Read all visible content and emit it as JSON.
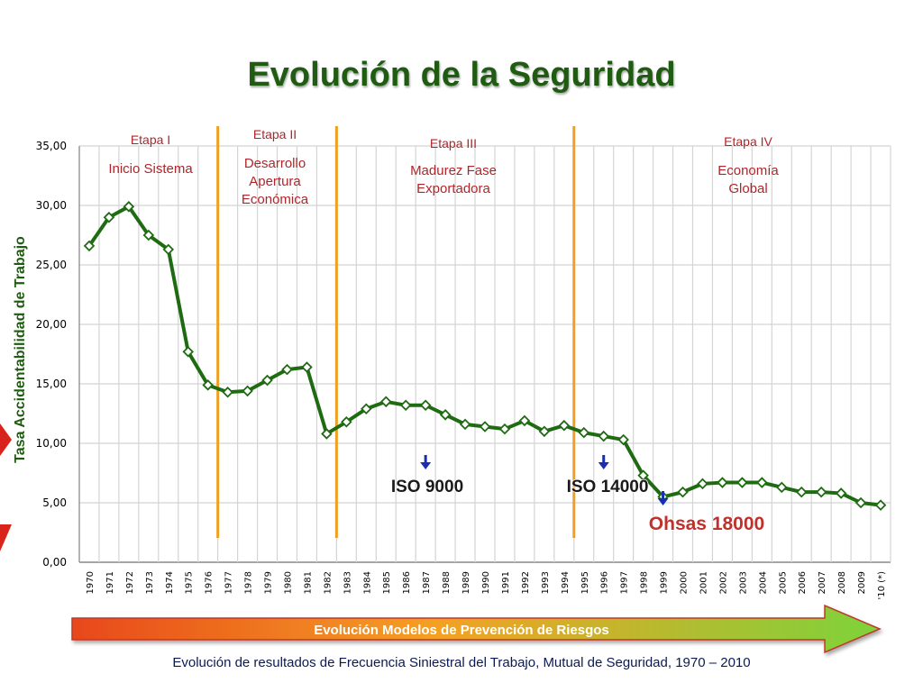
{
  "title": "Evolución de la Seguridad",
  "caption": "Evolución de resultados de Frecuencia Siniestral del Trabajo, Mutual de Seguridad, 1970 – 2010",
  "arrow_label": "Evolución Modelos de Prevención de Riesgos",
  "chart_data": {
    "type": "line",
    "ylabel": "Tasa Accidentabilidad de Trabajo",
    "ylim": [
      0,
      35
    ],
    "yticks": [
      "0,00",
      "5,00",
      "10,00",
      "15,00",
      "20,00",
      "25,00",
      "30,00",
      "35,00"
    ],
    "categories": [
      "1970",
      "1971",
      "1972",
      "1973",
      "1974",
      "1975",
      "1976",
      "1977",
      "1978",
      "1979",
      "1980",
      "1981",
      "1982",
      "1983",
      "1984",
      "1985",
      "1986",
      "1987",
      "1988",
      "1989",
      "1990",
      "1991",
      "1992",
      "1993",
      "1994",
      "1995",
      "1996",
      "1997",
      "1998",
      "1999",
      "2000",
      "2001",
      "2002",
      "2003",
      "2004",
      "2005",
      "2006",
      "2007",
      "2008",
      "2009",
      "'10 (*)"
    ],
    "series": [
      {
        "values": [
          26.6,
          29.0,
          29.9,
          27.5,
          26.3,
          17.7,
          14.9,
          14.3,
          14.4,
          15.3,
          16.2,
          16.4,
          10.8,
          11.8,
          12.9,
          13.5,
          13.2,
          13.2,
          12.4,
          11.6,
          11.4,
          11.2,
          11.9,
          11.0,
          11.5,
          10.9,
          10.6,
          10.3,
          7.3,
          5.5,
          5.9,
          6.6,
          6.7,
          6.7,
          6.7,
          6.3,
          5.9,
          5.9,
          5.8,
          5.0,
          4.8
        ]
      }
    ],
    "grid": true,
    "line_color": "#1e6b12",
    "stages": [
      {
        "name": "Etapa I",
        "desc": [
          "Inicio Sistema"
        ]
      },
      {
        "name": "Etapa II",
        "desc": [
          "Desarrollo",
          "Apertura",
          "Económica"
        ]
      },
      {
        "name": "Etapa III",
        "desc": [
          "Madurez Fase",
          "Exportadora"
        ]
      },
      {
        "name": "Etapa IV",
        "desc": [
          "Economía",
          "Global"
        ]
      }
    ],
    "markers": [
      {
        "label": "ISO 9000",
        "year": "1987"
      },
      {
        "label": "ISO 14000",
        "year": "1996"
      },
      {
        "label": "Ohsas 18000",
        "year": "1999"
      }
    ],
    "colors": {
      "stage_line": "#f0a020",
      "stage_text": "#b0252a",
      "marker_arrow": "#1a2fb0",
      "title": "#1f5c12"
    }
  }
}
